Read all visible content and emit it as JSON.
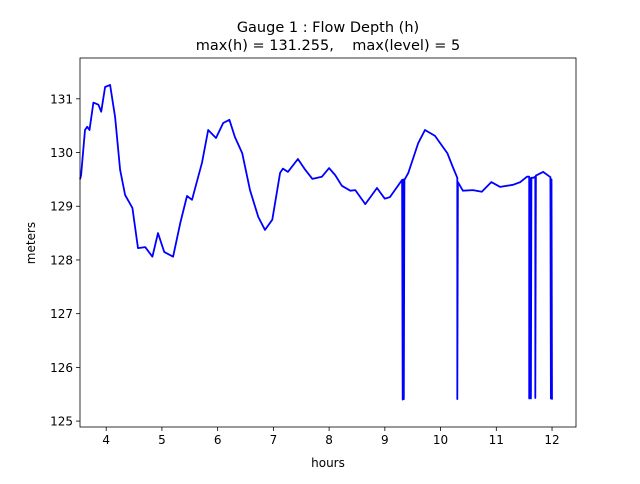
{
  "chart_data": {
    "type": "line",
    "title": "Gauge 1 : Flow Depth (h)",
    "subtitle": "max(h) = 131.255,    max(level) = 5",
    "xlabel": "hours",
    "ylabel": "meters",
    "xlim": [
      3.53,
      12.43
    ],
    "ylim": [
      124.89,
      131.76
    ],
    "xticks": [
      4,
      5,
      6,
      7,
      8,
      9,
      10,
      11,
      12
    ],
    "yticks": [
      125,
      126,
      127,
      128,
      129,
      130,
      131
    ],
    "grid": false,
    "series": [
      {
        "name": "h",
        "color": "#0000ff",
        "x": [
          3.53,
          3.55,
          3.62,
          3.66,
          3.7,
          3.77,
          3.86,
          3.91,
          3.98,
          4.07,
          4.16,
          4.25,
          4.34,
          4.47,
          4.57,
          4.7,
          4.83,
          4.93,
          5.04,
          5.2,
          5.33,
          5.45,
          5.54,
          5.72,
          5.83,
          5.97,
          6.1,
          6.21,
          6.31,
          6.44,
          6.58,
          6.73,
          6.85,
          6.98,
          7.12,
          7.17,
          7.26,
          7.44,
          7.57,
          7.7,
          7.87,
          8.0,
          8.11,
          8.23,
          8.38,
          8.47,
          8.65,
          8.86,
          9.0,
          9.09,
          9.31,
          9.32,
          9.33,
          9.34,
          9.35,
          9.42,
          9.6,
          9.72,
          9.9,
          10.12,
          10.22,
          10.3,
          10.3,
          10.31,
          10.4,
          10.58,
          10.74,
          10.91,
          11.07,
          11.3,
          11.43,
          11.55,
          11.59,
          11.59,
          11.6,
          11.62,
          11.62,
          11.63,
          11.66,
          11.7,
          11.7,
          11.71,
          11.84,
          11.96,
          11.97,
          11.98,
          11.99,
          12.0
        ],
        "y": [
          129.5,
          129.58,
          130.42,
          130.48,
          130.42,
          130.93,
          130.89,
          130.76,
          131.22,
          131.26,
          130.66,
          129.68,
          129.21,
          128.97,
          128.22,
          128.24,
          128.06,
          128.5,
          128.15,
          128.06,
          128.69,
          129.19,
          129.12,
          129.81,
          130.42,
          130.27,
          130.55,
          130.61,
          130.29,
          129.99,
          129.3,
          128.8,
          128.56,
          128.75,
          129.62,
          129.7,
          129.64,
          129.88,
          129.68,
          129.51,
          129.55,
          129.71,
          129.58,
          129.38,
          129.29,
          129.3,
          129.04,
          129.34,
          129.14,
          129.17,
          129.49,
          125.4,
          129.5,
          125.41,
          129.49,
          129.62,
          130.18,
          130.42,
          130.31,
          129.99,
          129.73,
          129.53,
          125.41,
          129.45,
          129.29,
          129.3,
          129.27,
          129.45,
          129.36,
          129.4,
          129.45,
          129.55,
          129.55,
          125.42,
          129.52,
          129.52,
          125.42,
          129.53,
          129.53,
          129.55,
          125.43,
          129.57,
          129.64,
          129.55,
          129.54,
          125.42,
          129.5,
          125.4
        ]
      }
    ]
  }
}
